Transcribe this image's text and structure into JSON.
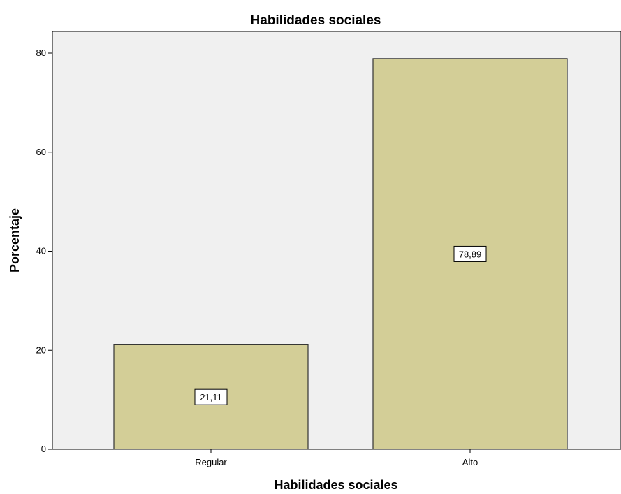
{
  "chart_data": {
    "type": "bar",
    "title": "Habilidades sociales",
    "xlabel": "Habilidades sociales",
    "ylabel": "Porcentaje",
    "categories": [
      "Regular",
      "Alto"
    ],
    "values": [
      21.11,
      78.89
    ],
    "data_labels": [
      "21,11",
      "78,89"
    ],
    "ylim": [
      0,
      80
    ],
    "yticks": [
      0,
      20,
      40,
      60,
      80
    ],
    "ytick_labels": [
      "0",
      "20",
      "40",
      "60",
      "80"
    ],
    "grid": false,
    "colors": {
      "plot_background": "#f0f0f0",
      "bar_fill": "#d3ce97",
      "bar_stroke": "#333333",
      "axis": "#000000"
    }
  }
}
